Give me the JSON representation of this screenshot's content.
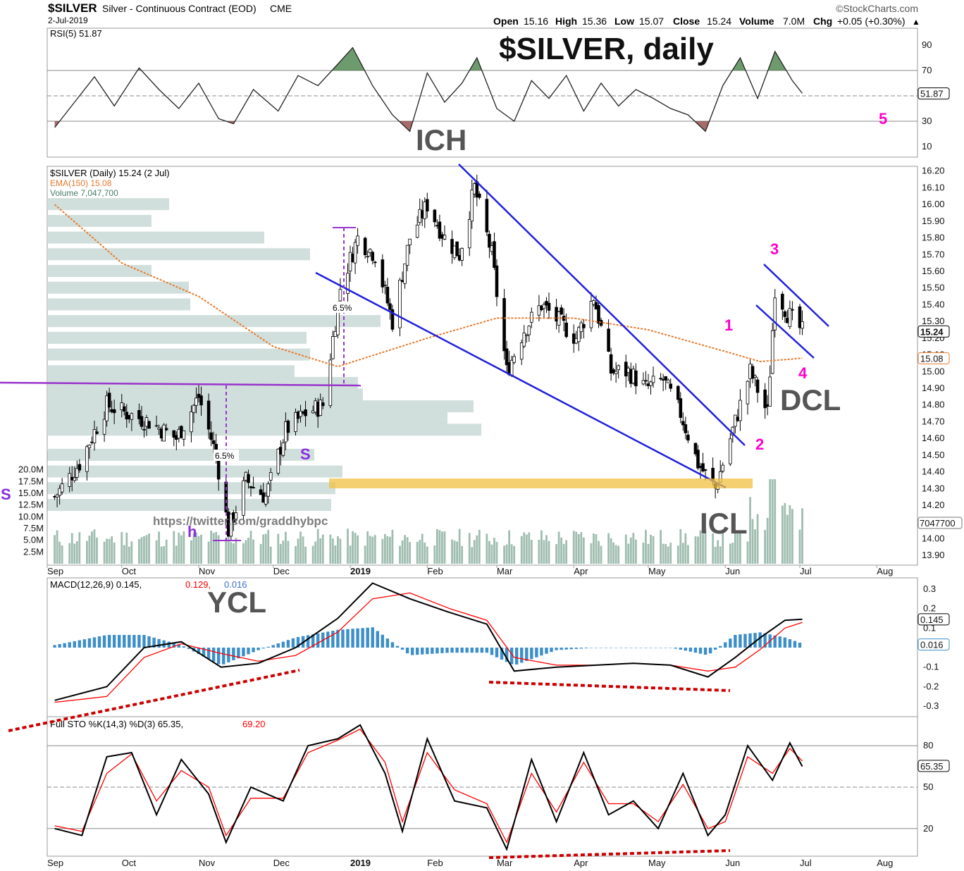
{
  "header": {
    "symbol": "$SILVER",
    "description": "Silver - Continuous Contract (EOD)",
    "exchange": "CME",
    "date": "2-Jul-2019",
    "source": "©StockCharts.com",
    "quote": {
      "open_label": "Open",
      "open": "15.16",
      "high_label": "High",
      "high": "15.36",
      "low_label": "Low",
      "low": "15.07",
      "close_label": "Close",
      "close": "15.24",
      "volume_label": "Volume",
      "volume": "7.0M",
      "chg_label": "Chg",
      "chg": "+0.05 (+0.30%)"
    }
  },
  "annotations": {
    "main_title": "$SILVER, daily",
    "ich": "ICH",
    "icl": "ICL",
    "dcl": "DCL",
    "ycl": "YCL",
    "wave_1": "1",
    "wave_2": "2",
    "wave_3": "3",
    "wave_4": "4",
    "wave_5": "5",
    "s_left": "S",
    "h": "h",
    "s_right": "S",
    "pct_left": "6.5%",
    "pct_right": "6.5%",
    "watermark": "https://twitter.com/graddhybpc"
  },
  "colors": {
    "price_up": "#000000",
    "price_down": "#000000",
    "ema": "#e8792b",
    "volume": "#9fbdb0",
    "volume_profile": "#c9d9d6",
    "trendline": "#2020dd",
    "neckline": "#9933cc",
    "support_zone": "#f0c040",
    "macd": "#000000",
    "signal": "#ff0000",
    "histogram": "#3d8ec9",
    "sto_k": "#000000",
    "sto_d": "#ff0000",
    "divergence": "#cc0000",
    "wave_labels": "#ff00cc",
    "rsi_overbought": "#3d7a3d",
    "rsi_oversold": "#8b3a3a"
  },
  "chart_data": [
    {
      "type": "line",
      "panel": "rsi",
      "legend": "RSI(5) 51.87",
      "last_value": "51.87",
      "y_ticks": [
        "90",
        "70",
        "50",
        "30",
        "10"
      ],
      "ylim": [
        0,
        100
      ],
      "levels": [
        70,
        50,
        30
      ],
      "series": [
        {
          "name": "RSI(5)",
          "x": [
            "2018-09-04",
            "2018-09-12",
            "2018-09-20",
            "2018-09-28",
            "2018-10-08",
            "2018-10-16",
            "2018-10-24",
            "2018-11-01",
            "2018-11-09",
            "2018-11-15",
            "2018-11-23",
            "2018-12-03",
            "2018-12-11",
            "2018-12-19",
            "2018-12-27",
            "2019-01-02",
            "2019-01-10",
            "2019-01-18",
            "2019-01-25",
            "2019-02-01",
            "2019-02-08",
            "2019-02-15",
            "2019-02-21",
            "2019-03-01",
            "2019-03-08",
            "2019-03-15",
            "2019-03-22",
            "2019-03-29",
            "2019-04-05",
            "2019-04-12",
            "2019-04-19",
            "2019-04-26",
            "2019-05-03",
            "2019-05-10",
            "2019-05-17",
            "2019-05-24",
            "2019-05-31",
            "2019-06-07",
            "2019-06-14",
            "2019-06-21",
            "2019-06-28",
            "2019-07-02"
          ],
          "values": [
            25,
            45,
            65,
            42,
            72,
            55,
            40,
            60,
            32,
            28,
            55,
            38,
            66,
            58,
            75,
            88,
            58,
            35,
            22,
            68,
            45,
            60,
            80,
            40,
            30,
            62,
            48,
            66,
            38,
            60,
            42,
            55,
            48,
            40,
            35,
            22,
            58,
            80,
            48,
            85,
            62,
            52
          ]
        }
      ]
    },
    {
      "type": "candlestick",
      "panel": "price",
      "legend": [
        "$SILVER (Daily) 15.24 (2 Jul)",
        "EMA(150) 15.08",
        "Volume 7,047,700"
      ],
      "last_value": "15.24",
      "ema_last": "15.08",
      "volume_last": "7047700",
      "y_ticks": [
        "16.20",
        "16.10",
        "16.00",
        "15.90",
        "15.80",
        "15.70",
        "15.60",
        "15.50",
        "15.40",
        "15.30",
        "15.20",
        "15.10",
        "15.00",
        "14.90",
        "14.80",
        "14.70",
        "14.60",
        "14.50",
        "14.40",
        "14.30",
        "14.20",
        "14.10",
        "14.00",
        "13.90"
      ],
      "ylim": [
        13.85,
        16.22
      ],
      "volume_ticks": [
        "20.0M",
        "17.5M",
        "15.0M",
        "12.5M",
        "10.0M",
        "7.5M",
        "5.0M",
        "2.5M"
      ],
      "x_ticks": [
        "Sep",
        "Oct",
        "Nov",
        "Dec",
        "2019",
        "Feb",
        "Mar",
        "Apr",
        "May",
        "Jun",
        "Jul",
        "Aug"
      ],
      "series": [
        {
          "name": "$SILVER",
          "x": [
            "2018-09-04",
            "2018-09-14",
            "2018-09-25",
            "2018-10-03",
            "2018-10-12",
            "2018-10-23",
            "2018-11-01",
            "2018-11-08",
            "2018-11-13",
            "2018-11-20",
            "2018-11-28",
            "2018-12-06",
            "2018-12-14",
            "2018-12-21",
            "2018-12-28",
            "2019-01-04",
            "2019-01-11",
            "2019-01-18",
            "2019-01-25",
            "2019-02-01",
            "2019-02-08",
            "2019-02-14",
            "2019-02-20",
            "2019-02-27",
            "2019-03-05",
            "2019-03-12",
            "2019-03-19",
            "2019-03-26",
            "2019-04-02",
            "2019-04-09",
            "2019-04-16",
            "2019-04-23",
            "2019-04-30",
            "2019-05-07",
            "2019-05-14",
            "2019-05-21",
            "2019-05-28",
            "2019-06-04",
            "2019-06-11",
            "2019-06-18",
            "2019-06-21",
            "2019-06-26",
            "2019-07-02"
          ],
          "values": [
            14.25,
            14.45,
            14.8,
            14.75,
            14.7,
            14.6,
            14.85,
            14.5,
            14.05,
            14.35,
            14.25,
            14.65,
            14.75,
            14.8,
            15.5,
            15.8,
            15.7,
            15.3,
            15.8,
            16.0,
            15.8,
            15.7,
            16.1,
            15.7,
            15.0,
            15.25,
            15.4,
            15.3,
            15.2,
            15.45,
            15.0,
            15.0,
            14.9,
            14.95,
            14.75,
            14.45,
            14.3,
            14.65,
            15.0,
            14.75,
            15.5,
            15.35,
            15.24
          ]
        },
        {
          "name": "EMA(150)",
          "x": [
            "2018-09-04",
            "2018-10-01",
            "2018-11-01",
            "2018-12-01",
            "2018-12-27",
            "2019-02-01",
            "2019-03-01",
            "2019-04-01",
            "2019-05-01",
            "2019-06-01",
            "2019-06-15",
            "2019-07-02"
          ],
          "values": [
            16.0,
            15.65,
            15.45,
            15.15,
            15.03,
            15.2,
            15.32,
            15.32,
            15.25,
            15.12,
            15.06,
            15.08
          ]
        }
      ]
    },
    {
      "type": "line",
      "panel": "macd",
      "legend": [
        "MACD(12,26,9) 0.145,",
        "0.129,",
        "0.016"
      ],
      "last_values": {
        "macd": "0.145",
        "signal": "0.129",
        "histogram": "0.016"
      },
      "y_ticks": [
        "0.3",
        "0.2",
        "0.1",
        "0.0",
        "-0.1",
        "-0.2",
        "-0.3"
      ],
      "ylim": [
        -0.35,
        0.35
      ],
      "series": [
        {
          "name": "MACD",
          "x": [
            "2018-09-04",
            "2018-09-25",
            "2018-10-10",
            "2018-10-25",
            "2018-11-10",
            "2018-11-25",
            "2018-12-10",
            "2018-12-27",
            "2019-01-10",
            "2019-01-25",
            "2019-02-10",
            "2019-02-25",
            "2019-03-08",
            "2019-03-25",
            "2019-04-10",
            "2019-04-25",
            "2019-05-10",
            "2019-05-25",
            "2019-06-05",
            "2019-06-15",
            "2019-06-25",
            "2019-07-02"
          ],
          "values": [
            -0.27,
            -0.2,
            0.0,
            0.03,
            -0.1,
            -0.08,
            0.0,
            0.15,
            0.33,
            0.25,
            0.18,
            0.12,
            -0.12,
            -0.1,
            -0.09,
            -0.08,
            -0.09,
            -0.15,
            -0.05,
            0.05,
            0.14,
            0.145
          ]
        },
        {
          "name": "Signal",
          "x": [
            "2018-09-04",
            "2018-09-25",
            "2018-10-10",
            "2018-10-25",
            "2018-11-10",
            "2018-11-25",
            "2018-12-10",
            "2018-12-27",
            "2019-01-10",
            "2019-01-25",
            "2019-02-10",
            "2019-02-25",
            "2019-03-08",
            "2019-03-25",
            "2019-04-10",
            "2019-04-25",
            "2019-05-10",
            "2019-05-25",
            "2019-06-05",
            "2019-06-15",
            "2019-06-25",
            "2019-07-02"
          ],
          "values": [
            -0.28,
            -0.25,
            -0.05,
            0.02,
            -0.03,
            -0.07,
            -0.04,
            0.08,
            0.25,
            0.28,
            0.2,
            0.14,
            -0.05,
            -0.09,
            -0.09,
            -0.08,
            -0.09,
            -0.12,
            -0.1,
            -0.01,
            0.1,
            0.129
          ]
        }
      ]
    },
    {
      "type": "line",
      "panel": "stochastic",
      "legend": [
        "Full STO %K(14,3) %D(3) 65.35,",
        "69.20"
      ],
      "last_values": {
        "k": "65.35",
        "d": "69.20"
      },
      "y_ticks": [
        "80",
        "50",
        "20"
      ],
      "ylim": [
        0,
        100
      ],
      "levels": [
        80,
        50,
        20
      ],
      "series": [
        {
          "name": "%K",
          "x": [
            "2018-09-04",
            "2018-09-15",
            "2018-09-25",
            "2018-10-05",
            "2018-10-15",
            "2018-10-25",
            "2018-11-05",
            "2018-11-12",
            "2018-11-22",
            "2018-12-05",
            "2018-12-15",
            "2018-12-27",
            "2019-01-05",
            "2019-01-15",
            "2019-01-22",
            "2019-02-01",
            "2019-02-12",
            "2019-02-25",
            "2019-03-05",
            "2019-03-15",
            "2019-03-25",
            "2019-04-05",
            "2019-04-15",
            "2019-04-25",
            "2019-05-05",
            "2019-05-15",
            "2019-05-25",
            "2019-06-01",
            "2019-06-10",
            "2019-06-20",
            "2019-06-27",
            "2019-07-02"
          ],
          "values": [
            20,
            15,
            72,
            75,
            30,
            70,
            45,
            10,
            50,
            40,
            80,
            85,
            95,
            60,
            18,
            85,
            40,
            35,
            5,
            70,
            25,
            75,
            30,
            40,
            20,
            60,
            15,
            30,
            80,
            55,
            82,
            65
          ]
        },
        {
          "name": "%D",
          "x": [
            "2018-09-04",
            "2018-09-15",
            "2018-09-25",
            "2018-10-05",
            "2018-10-15",
            "2018-10-25",
            "2018-11-05",
            "2018-11-12",
            "2018-11-22",
            "2018-12-05",
            "2018-12-15",
            "2018-12-27",
            "2019-01-05",
            "2019-01-15",
            "2019-01-22",
            "2019-02-01",
            "2019-02-12",
            "2019-02-25",
            "2019-03-05",
            "2019-03-15",
            "2019-03-25",
            "2019-04-05",
            "2019-04-15",
            "2019-04-25",
            "2019-05-05",
            "2019-05-15",
            "2019-05-25",
            "2019-06-01",
            "2019-06-10",
            "2019-06-20",
            "2019-06-27",
            "2019-07-02"
          ],
          "values": [
            22,
            18,
            60,
            74,
            40,
            62,
            50,
            15,
            42,
            42,
            75,
            84,
            92,
            68,
            25,
            75,
            48,
            38,
            10,
            60,
            32,
            68,
            38,
            38,
            25,
            52,
            20,
            25,
            72,
            60,
            78,
            69
          ]
        }
      ]
    }
  ]
}
